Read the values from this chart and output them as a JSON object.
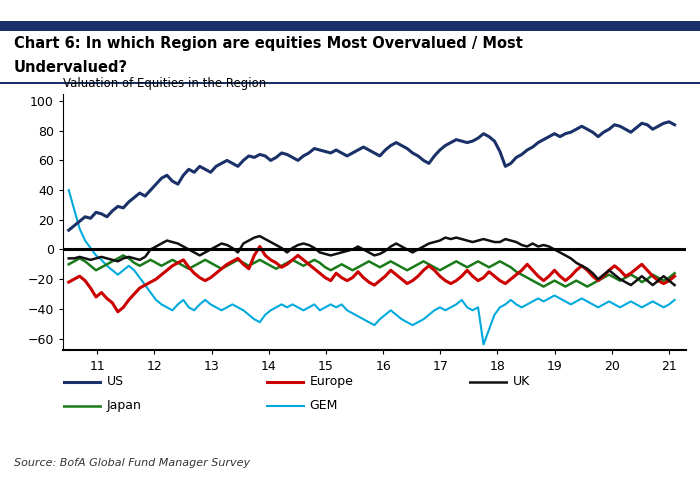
{
  "title_line1": "Chart 6: In which Region are equities Most Overvalued / Most",
  "title_line2": "Undervalued?",
  "subtitle": "Valuation of Equities in the Region",
  "source": "Source: BofA Global Fund Manager Survey",
  "ylim": [
    -68,
    105
  ],
  "yticks": [
    -60,
    -40,
    -20,
    0,
    20,
    40,
    60,
    80,
    100
  ],
  "xlim": [
    10.4,
    21.3
  ],
  "xticks": [
    11,
    12,
    13,
    14,
    15,
    16,
    17,
    18,
    19,
    20,
    21
  ],
  "colors": {
    "US": "#1a3068",
    "Europe": "#cc0000",
    "UK": "#111111",
    "Japan": "#1a7a1a",
    "GEM": "#00aadd"
  },
  "line_widths": {
    "US": 2.2,
    "Europe": 2.2,
    "UK": 1.8,
    "Japan": 1.8,
    "GEM": 1.5
  },
  "US": [
    13,
    16,
    19,
    22,
    21,
    25,
    24,
    22,
    26,
    29,
    28,
    32,
    35,
    38,
    36,
    40,
    44,
    48,
    50,
    46,
    44,
    50,
    54,
    52,
    56,
    54,
    52,
    56,
    58,
    60,
    58,
    56,
    60,
    63,
    62,
    64,
    63,
    60,
    62,
    65,
    64,
    62,
    60,
    63,
    65,
    68,
    67,
    66,
    65,
    67,
    65,
    63,
    65,
    67,
    69,
    67,
    65,
    63,
    67,
    70,
    72,
    70,
    68,
    65,
    63,
    60,
    58,
    63,
    67,
    70,
    72,
    74,
    73,
    72,
    73,
    75,
    78,
    76,
    73,
    66,
    56,
    58,
    62,
    64,
    67,
    69,
    72,
    74,
    76,
    78,
    76,
    78,
    79,
    81,
    83,
    81,
    79,
    76,
    79,
    81,
    84,
    83,
    81,
    79,
    82,
    85,
    84,
    81,
    83,
    85,
    86,
    84
  ],
  "Europe": [
    -22,
    -20,
    -18,
    -21,
    -26,
    -32,
    -29,
    -33,
    -36,
    -42,
    -39,
    -34,
    -30,
    -26,
    -24,
    -22,
    -20,
    -17,
    -14,
    -11,
    -9,
    -7,
    -12,
    -16,
    -19,
    -21,
    -19,
    -16,
    -13,
    -10,
    -8,
    -6,
    -10,
    -13,
    -4,
    2,
    -4,
    -7,
    -9,
    -12,
    -10,
    -7,
    -4,
    -7,
    -10,
    -13,
    -16,
    -19,
    -21,
    -16,
    -19,
    -21,
    -19,
    -15,
    -19,
    -22,
    -24,
    -21,
    -18,
    -14,
    -17,
    -20,
    -23,
    -21,
    -18,
    -14,
    -11,
    -14,
    -18,
    -21,
    -23,
    -21,
    -18,
    -14,
    -18,
    -21,
    -19,
    -15,
    -18,
    -21,
    -23,
    -20,
    -17,
    -14,
    -10,
    -14,
    -18,
    -21,
    -18,
    -14,
    -18,
    -21,
    -18,
    -14,
    -11,
    -14,
    -18,
    -21,
    -18,
    -14,
    -11,
    -14,
    -18,
    -16,
    -13,
    -10,
    -14,
    -18,
    -21,
    -23,
    -21,
    -18
  ],
  "UK": [
    -6,
    -6,
    -5,
    -6,
    -7,
    -6,
    -5,
    -6,
    -7,
    -8,
    -6,
    -5,
    -6,
    -7,
    -5,
    0,
    2,
    4,
    6,
    5,
    4,
    2,
    0,
    -2,
    -4,
    -2,
    0,
    2,
    4,
    3,
    1,
    -2,
    4,
    6,
    8,
    9,
    7,
    5,
    3,
    1,
    -2,
    1,
    3,
    4,
    3,
    1,
    -2,
    -3,
    -4,
    -3,
    -2,
    -1,
    0,
    2,
    0,
    -2,
    -4,
    -3,
    -1,
    2,
    4,
    2,
    0,
    -2,
    0,
    2,
    4,
    5,
    6,
    8,
    7,
    8,
    7,
    6,
    5,
    6,
    7,
    6,
    5,
    5,
    7,
    6,
    5,
    3,
    2,
    4,
    2,
    3,
    2,
    0,
    -2,
    -4,
    -6,
    -9,
    -11,
    -13,
    -16,
    -20,
    -17,
    -14,
    -17,
    -20,
    -22,
    -24,
    -21,
    -18,
    -21,
    -24,
    -21,
    -18,
    -21,
    -24
  ],
  "Japan": [
    -10,
    -8,
    -6,
    -8,
    -11,
    -14,
    -12,
    -10,
    -8,
    -6,
    -4,
    -6,
    -9,
    -11,
    -9,
    -7,
    -9,
    -11,
    -9,
    -7,
    -9,
    -11,
    -13,
    -11,
    -9,
    -7,
    -9,
    -11,
    -13,
    -11,
    -9,
    -7,
    -9,
    -11,
    -9,
    -7,
    -9,
    -11,
    -13,
    -11,
    -9,
    -7,
    -9,
    -11,
    -9,
    -7,
    -9,
    -12,
    -14,
    -12,
    -10,
    -12,
    -14,
    -12,
    -10,
    -8,
    -10,
    -12,
    -10,
    -8,
    -10,
    -12,
    -14,
    -12,
    -10,
    -8,
    -10,
    -12,
    -14,
    -12,
    -10,
    -8,
    -10,
    -12,
    -10,
    -8,
    -10,
    -12,
    -10,
    -8,
    -10,
    -12,
    -15,
    -17,
    -19,
    -21,
    -23,
    -25,
    -23,
    -21,
    -23,
    -25,
    -23,
    -21,
    -23,
    -25,
    -23,
    -21,
    -19,
    -17,
    -19,
    -21,
    -19,
    -17,
    -19,
    -22,
    -20,
    -17,
    -19,
    -21,
    -19,
    -16
  ],
  "GEM": [
    40,
    27,
    14,
    6,
    1,
    -4,
    -7,
    -11,
    -14,
    -17,
    -14,
    -11,
    -14,
    -19,
    -24,
    -29,
    -34,
    -37,
    -39,
    -41,
    -37,
    -34,
    -39,
    -41,
    -37,
    -34,
    -37,
    -39,
    -41,
    -39,
    -37,
    -39,
    -41,
    -44,
    -47,
    -49,
    -44,
    -41,
    -39,
    -37,
    -39,
    -37,
    -39,
    -41,
    -39,
    -37,
    -41,
    -39,
    -37,
    -39,
    -37,
    -41,
    -43,
    -45,
    -47,
    -49,
    -51,
    -47,
    -44,
    -41,
    -44,
    -47,
    -49,
    -51,
    -49,
    -47,
    -44,
    -41,
    -39,
    -41,
    -39,
    -37,
    -34,
    -39,
    -41,
    -39,
    -64,
    -54,
    -44,
    -39,
    -37,
    -34,
    -37,
    -39,
    -37,
    -35,
    -33,
    -35,
    -33,
    -31,
    -33,
    -35,
    -37,
    -35,
    -33,
    -35,
    -37,
    -39,
    -37,
    -35,
    -37,
    -39,
    -37,
    -35,
    -37,
    -39,
    -37,
    -35,
    -37,
    -39,
    -37,
    -34
  ]
}
